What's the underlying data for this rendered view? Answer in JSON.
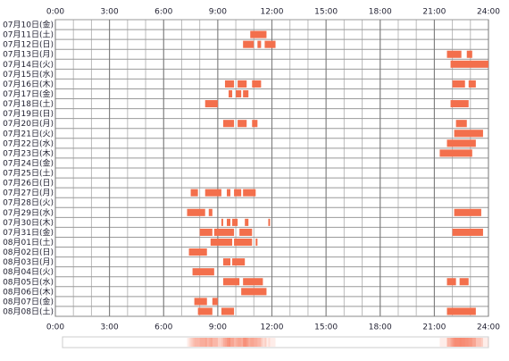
{
  "chart_data": {
    "type": "timeline",
    "color": "#f36f4c",
    "grid": true,
    "xlim": [
      0,
      24
    ],
    "xticks": [
      {
        "value": 0,
        "label": "0:00"
      },
      {
        "value": 3,
        "label": "3:00"
      },
      {
        "value": 6,
        "label": "6:00"
      },
      {
        "value": 9,
        "label": "9:00"
      },
      {
        "value": 12,
        "label": "12:00"
      },
      {
        "value": 15,
        "label": "15:00"
      },
      {
        "value": 18,
        "label": "18:00"
      },
      {
        "value": 21,
        "label": "21:00"
      },
      {
        "value": 24,
        "label": "24:00"
      }
    ],
    "categories": [
      "07月10日(金)",
      "07月11日(土)",
      "07月12日(日)",
      "07月13日(月)",
      "07月14日(火)",
      "07月15日(水)",
      "07月16日(木)",
      "07月17日(金)",
      "07月18日(土)",
      "07月19日(日)",
      "07月20日(月)",
      "07月21日(火)",
      "07月22日(水)",
      "07月23日(木)",
      "07月24日(金)",
      "07月25日(土)",
      "07月26日(日)",
      "07月27日(月)",
      "07月28日(火)",
      "07月29日(水)",
      "07月30日(木)",
      "07月31日(金)",
      "08月01日(土)",
      "08月02日(日)",
      "08月03日(月)",
      "08月04日(火)",
      "08月05日(水)",
      "08月06日(木)",
      "08月07日(金)",
      "08月08日(土)"
    ],
    "values": [
      [],
      [
        [
          10.8,
          11.7
        ]
      ],
      [
        [
          10.4,
          11.0
        ],
        [
          11.2,
          11.4
        ],
        [
          11.6,
          12.2
        ]
      ],
      [
        [
          21.7,
          22.5
        ],
        [
          22.8,
          23.1
        ]
      ],
      [
        [
          21.9,
          24.0
        ]
      ],
      [],
      [
        [
          9.4,
          9.9
        ],
        [
          10.1,
          10.6
        ],
        [
          10.9,
          11.4
        ],
        [
          22.0,
          22.7
        ],
        [
          22.9,
          23.3
        ]
      ],
      [
        [
          9.6,
          9.8
        ],
        [
          10.0,
          10.3
        ],
        [
          10.4,
          10.7
        ]
      ],
      [
        [
          8.3,
          9.0
        ],
        [
          21.9,
          22.9
        ]
      ],
      [],
      [
        [
          9.3,
          9.9
        ],
        [
          10.1,
          10.6
        ],
        [
          10.9,
          11.2
        ],
        [
          22.2,
          22.8
        ]
      ],
      [
        [
          22.1,
          23.7
        ]
      ],
      [
        [
          21.7,
          23.3
        ]
      ],
      [
        [
          21.3,
          23.1
        ]
      ],
      [],
      [],
      [],
      [
        [
          7.5,
          7.9
        ],
        [
          8.3,
          9.2
        ],
        [
          9.5,
          9.7
        ],
        [
          9.9,
          10.3
        ],
        [
          10.4,
          11.1
        ]
      ],
      [],
      [
        [
          7.3,
          8.3
        ],
        [
          8.5,
          8.7
        ],
        [
          22.1,
          23.6
        ]
      ],
      [
        [
          9.2,
          9.3
        ],
        [
          9.5,
          9.7
        ],
        [
          9.8,
          10.1
        ],
        [
          10.5,
          10.7
        ],
        [
          11.8,
          11.9
        ]
      ],
      [
        [
          8.0,
          8.7
        ],
        [
          8.8,
          9.9
        ],
        [
          10.2,
          10.9
        ],
        [
          22.0,
          23.7
        ]
      ],
      [
        [
          8.6,
          9.8
        ],
        [
          9.9,
          10.9
        ],
        [
          11.1,
          11.2
        ]
      ],
      [
        [
          7.4,
          8.4
        ]
      ],
      [
        [
          9.3,
          9.7
        ],
        [
          9.8,
          10.5
        ]
      ],
      [
        [
          7.6,
          8.8
        ]
      ],
      [
        [
          9.3,
          10.2
        ],
        [
          10.4,
          11.5
        ],
        [
          21.7,
          22.2
        ],
        [
          22.4,
          22.9
        ]
      ],
      [
        [
          10.3,
          11.7
        ]
      ],
      [
        [
          7.7,
          8.4
        ],
        [
          8.7,
          9.0
        ]
      ],
      [
        [
          7.9,
          8.7
        ],
        [
          9.2,
          9.9
        ],
        [
          21.7,
          23.3
        ]
      ]
    ]
  }
}
